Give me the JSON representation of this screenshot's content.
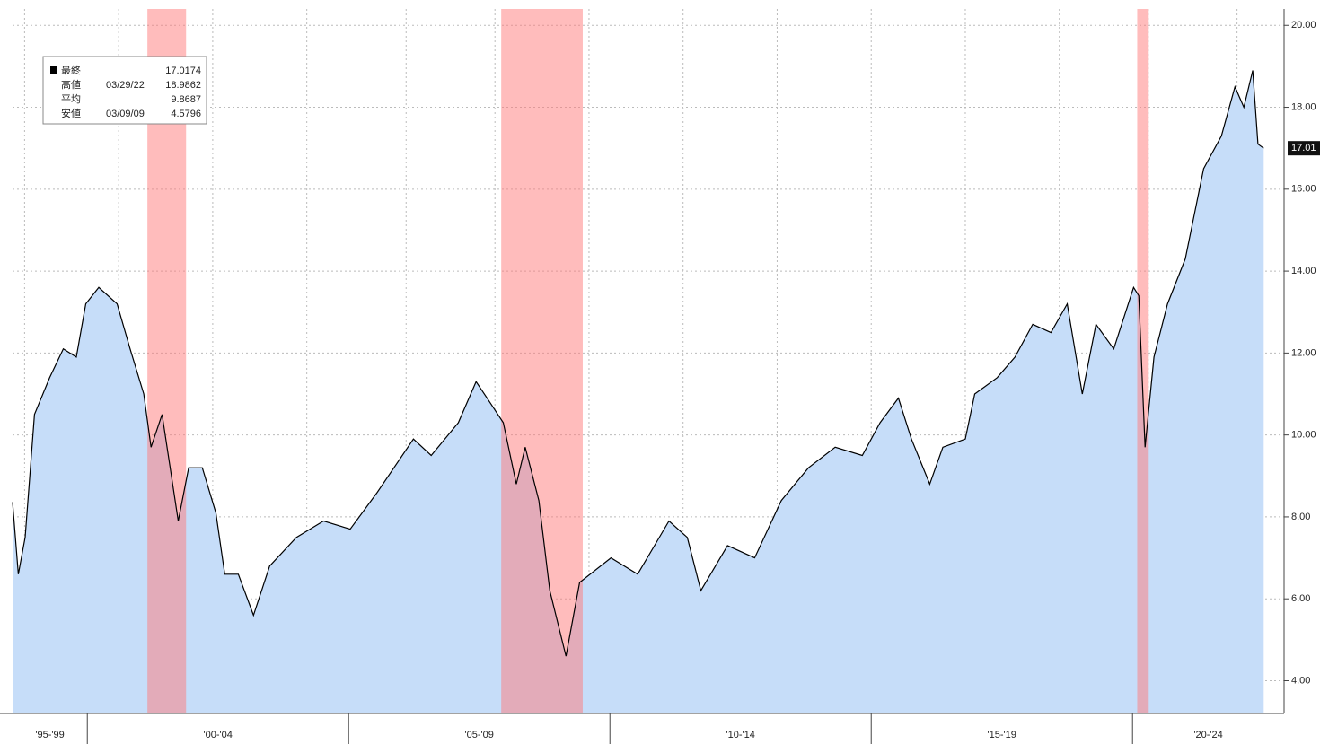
{
  "chart_data": {
    "type": "area",
    "x": [
      1998.57,
      1998.68,
      1998.81,
      1998.99,
      1999.28,
      1999.54,
      1999.79,
      1999.97,
      2000.22,
      2000.57,
      2000.82,
      2001.08,
      2001.22,
      2001.43,
      2001.74,
      2001.94,
      2002.2,
      2002.46,
      2002.63,
      2002.89,
      2003.18,
      2003.49,
      2004.0,
      2004.52,
      2005.03,
      2005.55,
      2006.24,
      2006.58,
      2007.1,
      2007.44,
      2007.7,
      2007.96,
      2008.21,
      2008.38,
      2008.64,
      2008.85,
      2009.16,
      2009.42,
      2010.02,
      2010.53,
      2011.13,
      2011.48,
      2011.74,
      2012.25,
      2012.77,
      2013.28,
      2013.8,
      2014.31,
      2014.83,
      2015.17,
      2015.52,
      2015.77,
      2016.12,
      2016.37,
      2016.8,
      2016.98,
      2017.41,
      2017.75,
      2018.09,
      2018.44,
      2018.75,
      2019.04,
      2019.3,
      2019.64,
      2020.02,
      2020.12,
      2020.24,
      2020.41,
      2020.67,
      2021.01,
      2021.36,
      2021.7,
      2021.96,
      2022.13,
      2022.3,
      2022.4,
      2022.51
    ],
    "series": [
      {
        "color": "#000000",
        "fill": "#c6ddf9",
        "values": [
          8.36,
          6.6,
          7.5,
          10.5,
          11.4,
          12.1,
          11.9,
          13.2,
          13.6,
          13.2,
          12.1,
          11.0,
          9.7,
          10.5,
          7.9,
          9.2,
          9.2,
          8.1,
          6.6,
          6.6,
          5.6,
          6.8,
          7.5,
          7.9,
          7.7,
          8.6,
          9.9,
          9.5,
          10.3,
          11.3,
          10.8,
          10.3,
          8.8,
          9.7,
          8.4,
          6.2,
          4.6,
          6.4,
          7.0,
          6.6,
          7.9,
          7.5,
          6.2,
          7.3,
          7.0,
          8.4,
          9.2,
          9.7,
          9.5,
          10.3,
          10.9,
          9.9,
          8.8,
          9.7,
          9.9,
          11.0,
          11.4,
          11.9,
          12.7,
          12.5,
          13.2,
          11.0,
          12.7,
          12.1,
          13.6,
          13.4,
          9.7,
          11.9,
          13.2,
          14.3,
          16.5,
          17.3,
          18.5,
          18.0,
          18.9,
          17.1,
          17.0
        ]
      }
    ],
    "xlim": [
      1998.57,
      2022.9
    ],
    "ylim": [
      3.2,
      20.4
    ],
    "yticks": [
      {
        "value": 4,
        "label": "4.00"
      },
      {
        "value": 6,
        "label": "6.00"
      },
      {
        "value": 8,
        "label": "8.00"
      },
      {
        "value": 10,
        "label": "10.00"
      },
      {
        "value": 12,
        "label": "12.00"
      },
      {
        "value": 14,
        "label": "14.00"
      },
      {
        "value": 16,
        "label": "16.00"
      },
      {
        "value": 18,
        "label": "18.00"
      },
      {
        "value": 20,
        "label": "20.00"
      }
    ],
    "xgrid": [
      1998.8,
      2000.6,
      2002.4,
      2004.2,
      2006.1,
      2007.8,
      2009.6,
      2011.4,
      2013.2,
      2015.0,
      2016.8,
      2018.6,
      2020.3,
      2022.0
    ],
    "periods": [
      {
        "label": "'95-'99",
        "start": 1995,
        "end": 2000
      },
      {
        "label": "'00-'04",
        "start": 2000,
        "end": 2005
      },
      {
        "label": "'05-'09",
        "start": 2005,
        "end": 2010
      },
      {
        "label": "'10-'14",
        "start": 2010,
        "end": 2015
      },
      {
        "label": "'15-'19",
        "start": 2015,
        "end": 2020
      },
      {
        "label": "'20-'24",
        "start": 2020,
        "end": 2025
      }
    ],
    "recessions": [
      [
        2001.15,
        2001.89
      ],
      [
        2007.92,
        2009.48
      ],
      [
        2020.09,
        2020.31
      ]
    ],
    "last_label": "17.01",
    "legend": [
      {
        "name": "最終",
        "value": "17.0174"
      },
      {
        "name": "高値",
        "date": "03/29/22",
        "value": "18.9862"
      },
      {
        "name": "平均",
        "value": "9.8687"
      },
      {
        "name": "安値",
        "date": "03/09/09",
        "value": "4.5796"
      }
    ]
  }
}
